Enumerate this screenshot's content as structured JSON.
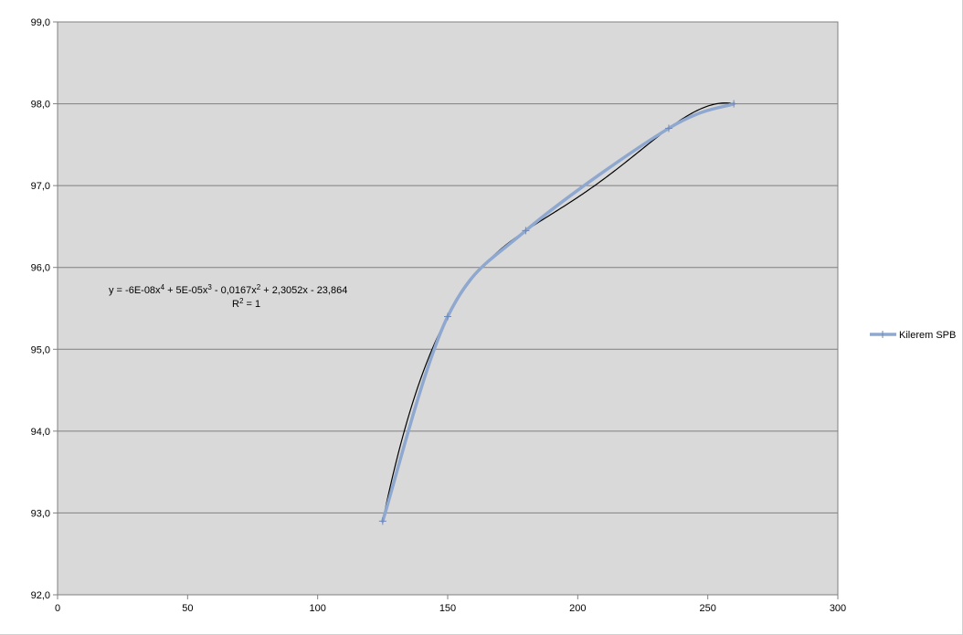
{
  "chart_data": {
    "type": "scatter",
    "title": "",
    "xlabel": "",
    "ylabel": "",
    "xlim": [
      0,
      300
    ],
    "ylim": [
      92.0,
      99.0
    ],
    "x_ticks": [
      "0",
      "50",
      "100",
      "150",
      "200",
      "250",
      "300"
    ],
    "y_ticks": [
      "92,0",
      "93,0",
      "94,0",
      "95,0",
      "96,0",
      "97,0",
      "98,0",
      "99,0"
    ],
    "grid": {
      "horizontal": true,
      "vertical": false
    },
    "plot_background": "#d9d9d9",
    "legend_position": "right",
    "series": [
      {
        "name": "Kilerem SPB",
        "color": "#8fa8d0",
        "marker": "plus",
        "x": [
          125,
          150,
          180,
          235,
          260
        ],
        "y": [
          92.9,
          95.4,
          96.45,
          97.7,
          98.0
        ]
      }
    ],
    "trendline": {
      "type": "polynomial",
      "order": 4,
      "color": "#000000",
      "equation_parts": [
        "y = -6E-08x",
        "4",
        " + 5E-05x",
        "3",
        " - 0,0167x",
        "2",
        " + 2,3052x - 23,864"
      ],
      "r2_parts": [
        "R",
        "2",
        " = 1"
      ]
    }
  }
}
